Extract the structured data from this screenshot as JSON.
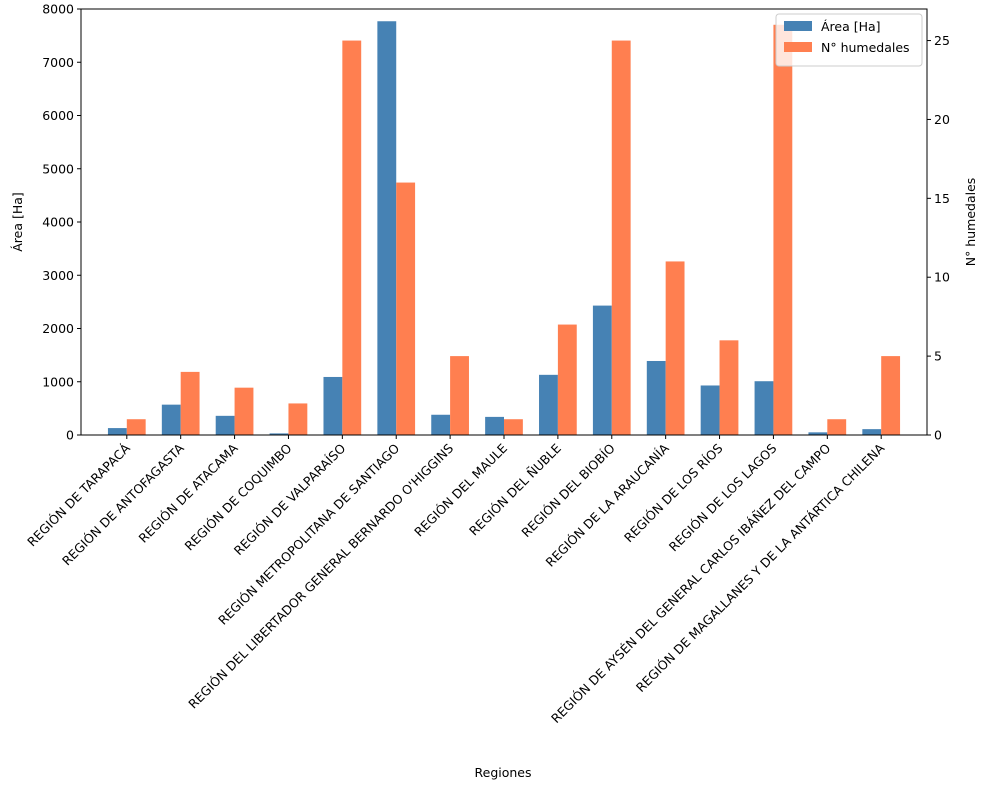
{
  "chart_data": {
    "type": "bar",
    "title": "",
    "xlabel": "Regiones",
    "ylabel_left": "Área [Ha]",
    "ylabel_right": "N° humedales",
    "ylim_left": [
      0,
      8000
    ],
    "ylim_right": [
      0,
      27
    ],
    "yticks_left": [
      "0",
      "1000",
      "2000",
      "3000",
      "4000",
      "5000",
      "6000",
      "7000",
      "8000"
    ],
    "yticks_right": [
      "0",
      "5",
      "10",
      "15",
      "20",
      "25"
    ],
    "legend_position": "top-right",
    "categories": [
      "REGIÓN DE TARAPACÁ",
      "REGIÓN DE ANTOFAGASTA",
      "REGIÓN DE ATACAMA",
      "REGIÓN DE COQUIMBO",
      "REGIÓN DE VALPARAÍSO",
      "REGIÓN METROPOLITANA DE SANTIAGO",
      "REGIÓN DEL LIBERTADOR GENERAL BERNARDO O'HIGGINS",
      "REGIÓN DEL MAULE",
      "REGIÓN DEL ÑUBLE",
      "REGIÓN DEL BIOBÍO",
      "REGIÓN DE LA ARAUCANÍA",
      "REGIÓN DE LOS RÍOS",
      "REGIÓN DE LOS LAGOS",
      "REGIÓN DE AYSÉN DEL GENERAL CARLOS IBÁÑEZ DEL CAMPO",
      "REGIÓN DE MAGALLANES Y DE LA ANTÁRTICA CHILENA"
    ],
    "series": [
      {
        "name": "Área [Ha]",
        "axis": "left",
        "color": "#4682b4",
        "values": [
          130,
          570,
          360,
          30,
          1090,
          7770,
          380,
          340,
          1130,
          2430,
          1390,
          930,
          1010,
          50,
          110
        ]
      },
      {
        "name": "N° humedales",
        "axis": "right",
        "color": "#ff7f50",
        "values": [
          1,
          4,
          3,
          2,
          25,
          16,
          5,
          1,
          7,
          25,
          11,
          6,
          26,
          1,
          5
        ]
      }
    ]
  }
}
